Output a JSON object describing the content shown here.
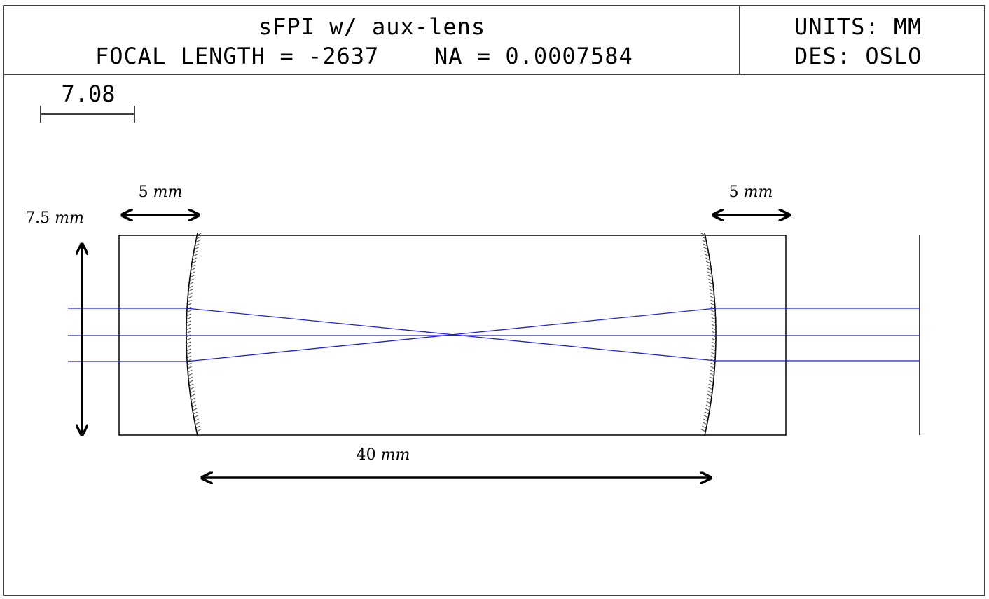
{
  "header": {
    "title": "sFPI w/ aux-lens",
    "focal_length_text": "FOCAL LENGTH = -2637",
    "na_text": "NA = 0.0007584",
    "units_text": "UNITS: MM",
    "designer_text": "DES: OSLO"
  },
  "scale_bar": {
    "label": "7.08"
  },
  "annotations": {
    "left_gap": {
      "value": "5",
      "unit": "mm"
    },
    "right_gap": {
      "value": "5",
      "unit": "mm"
    },
    "height": {
      "value": "7.5",
      "unit": "mm"
    },
    "cavity_length": {
      "value": "40",
      "unit": "mm"
    }
  },
  "colors": {
    "ray": "#1f1fd2",
    "line": "#000000",
    "mirror_hatch": "#555555"
  }
}
